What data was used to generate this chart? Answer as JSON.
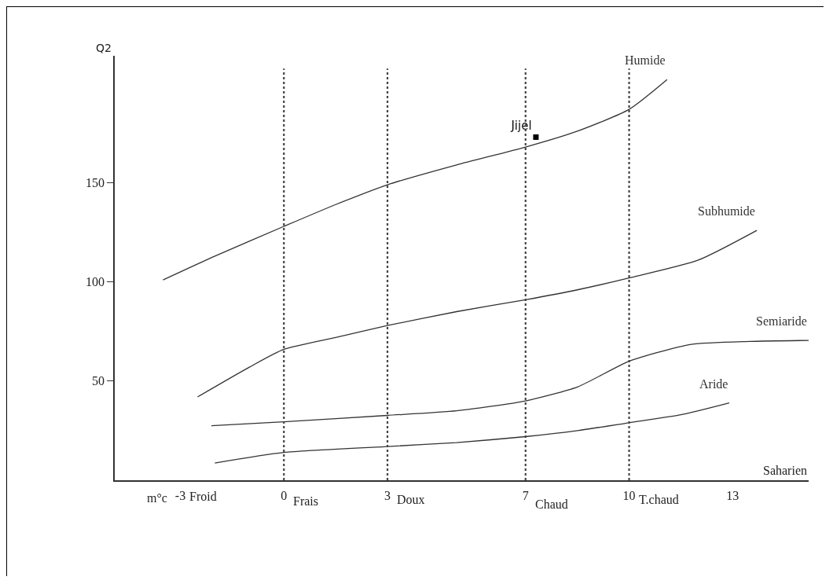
{
  "chart_data": {
    "type": "line",
    "xlabel": "m°c",
    "ylabel": "Q2",
    "xlim": [
      -4.9,
      15.2
    ],
    "ylim": [
      0,
      214
    ],
    "xticks": [
      -3,
      0,
      3,
      7,
      10,
      13
    ],
    "yticks": [
      50,
      100,
      150
    ],
    "series": [
      {
        "name": "Humide",
        "color": "#333333",
        "x": [
          -3.5,
          -2,
          0,
          1.5,
          3,
          5,
          7,
          8.5,
          10,
          11.1
        ],
        "values": [
          101,
          113,
          128,
          139,
          149,
          159,
          168,
          176,
          187,
          202
        ]
      },
      {
        "name": "Subhumide",
        "color": "#333333",
        "x": [
          -2.5,
          -1,
          0,
          1.5,
          3,
          5,
          7,
          8.5,
          10,
          12,
          13.7
        ],
        "values": [
          42,
          57,
          66,
          72,
          78,
          85,
          91,
          96,
          102,
          111,
          126
        ]
      },
      {
        "name": "Semiaride",
        "color": "#333333",
        "x": [
          -2.1,
          0,
          3,
          5,
          7,
          8.5,
          10,
          11.8,
          13.5,
          15.2
        ],
        "values": [
          27.5,
          29.5,
          32.7,
          35,
          40,
          47,
          60,
          68.5,
          70,
          70.5
        ]
      },
      {
        "name": "Aride",
        "color": "#333333",
        "x": [
          -2,
          0,
          3,
          5,
          7,
          8.5,
          10,
          11.5,
          12.9
        ],
        "values": [
          8.7,
          14,
          17,
          19,
          22,
          25,
          29,
          33,
          39
        ]
      },
      {
        "name": "Jijel",
        "type": "scatter",
        "marker": "square",
        "color": "#000000",
        "x": [
          7.3
        ],
        "values": [
          173
        ]
      }
    ],
    "ref_lines": [
      {
        "axis": "x",
        "value": 0,
        "color": "#444444",
        "line_style": "dotted"
      },
      {
        "axis": "x",
        "value": 3,
        "color": "#444444",
        "line_style": "dotted"
      },
      {
        "axis": "x",
        "value": 7,
        "color": "#444444",
        "line_style": "dotted"
      },
      {
        "axis": "x",
        "value": 10,
        "color": "#444444",
        "line_style": "dotted"
      }
    ],
    "annotations": [
      "Froid",
      "Frais",
      "Doux",
      "Chaud",
      "T.chaud",
      "Saharien"
    ],
    "grid": false,
    "legend": false,
    "line_style": "solid",
    "marker": "none"
  }
}
